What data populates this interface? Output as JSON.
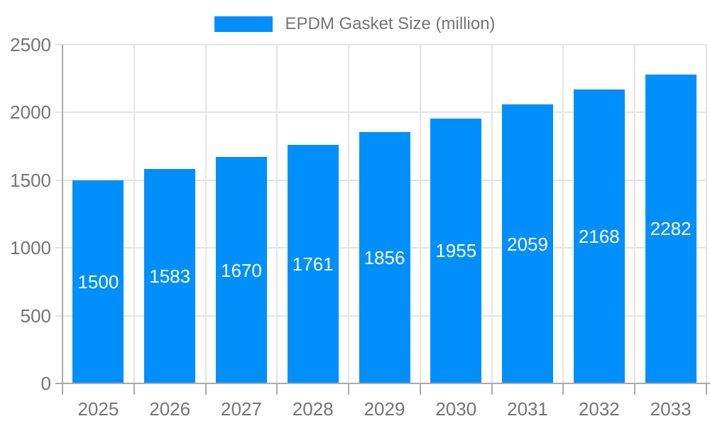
{
  "chart_data": {
    "type": "bar",
    "title": "EPDM Gasket Size (million)",
    "legend": {
      "label": "EPDM Gasket Size (million)",
      "position": "top-center"
    },
    "categories": [
      "2025",
      "2026",
      "2027",
      "2028",
      "2029",
      "2030",
      "2031",
      "2032",
      "2033"
    ],
    "series": [
      {
        "name": "EPDM Gasket Size (million)",
        "values": [
          1500,
          1583,
          1670,
          1761,
          1856,
          1955,
          2059,
          2168,
          2282
        ]
      }
    ],
    "value_labels": "inside-center",
    "xlabel": "",
    "ylabel": "",
    "ylim": [
      0,
      2500
    ],
    "yticks": [
      0,
      500,
      1000,
      1500,
      2000,
      2500
    ],
    "grid": true,
    "colors": {
      "bar": "#008FFB",
      "grid": "#e4e4e4",
      "axis": "#ababab",
      "axis_text": "#757575",
      "value_text": "#ffffff",
      "background": "#ffffff"
    }
  }
}
